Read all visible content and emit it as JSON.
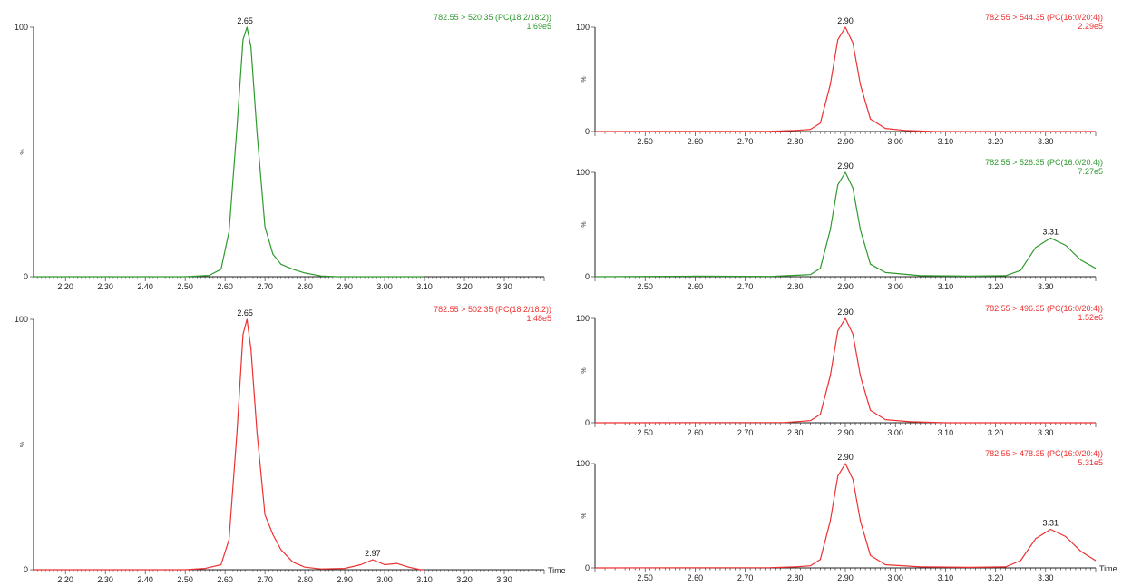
{
  "colors": {
    "green": "#2e9a2e",
    "red": "#ee3030",
    "axis": "#222222"
  },
  "chart_data": [
    {
      "type": "line",
      "title": "782.55 > 520.35 (PC(18:2/18:2))",
      "intensity": "1.69e5",
      "color": "green",
      "xlabel": "",
      "ylabel": "%",
      "xlim": [
        2.12,
        3.4
      ],
      "ylim": [
        0,
        100
      ],
      "xticks": [
        "2.20",
        "2.30",
        "2.40",
        "2.50",
        "2.60",
        "2.70",
        "2.80",
        "2.90",
        "3.00",
        "3.10",
        "3.20",
        "3.30"
      ],
      "yticks": [
        "0",
        "100"
      ],
      "peaks": [
        {
          "x": 2.65,
          "y": 100,
          "label": "2.65"
        }
      ],
      "x": [
        2.12,
        2.5,
        2.56,
        2.59,
        2.61,
        2.63,
        2.645,
        2.655,
        2.665,
        2.68,
        2.7,
        2.72,
        2.74,
        2.77,
        2.8,
        2.84,
        2.88,
        3.1
      ],
      "y": [
        0,
        0,
        0.5,
        3,
        18,
        60,
        95,
        100,
        92,
        58,
        20,
        9,
        5,
        3,
        1.5,
        0.3,
        0,
        0
      ]
    },
    {
      "type": "line",
      "title": "782.55 > 502.35 (PC(18:2/18:2))",
      "intensity": "1.48e5",
      "color": "red",
      "xlabel": "Time",
      "ylabel": "%",
      "xlim": [
        2.12,
        3.4
      ],
      "ylim": [
        0,
        100
      ],
      "xticks": [
        "2.20",
        "2.30",
        "2.40",
        "2.50",
        "2.60",
        "2.70",
        "2.80",
        "2.90",
        "3.00",
        "3.10",
        "3.20",
        "3.30"
      ],
      "yticks": [
        "0",
        "100"
      ],
      "peaks": [
        {
          "x": 2.65,
          "y": 100,
          "label": "2.65"
        },
        {
          "x": 2.97,
          "y": 4,
          "label": "2.97"
        }
      ],
      "x": [
        2.12,
        2.5,
        2.55,
        2.59,
        2.61,
        2.63,
        2.645,
        2.655,
        2.665,
        2.68,
        2.7,
        2.72,
        2.74,
        2.77,
        2.8,
        2.84,
        2.9,
        2.94,
        2.97,
        3.0,
        3.03,
        3.06,
        3.09,
        3.1
      ],
      "y": [
        0,
        0,
        0.5,
        2,
        12,
        55,
        94,
        100,
        88,
        55,
        22,
        14,
        8,
        3,
        1,
        0.3,
        0.5,
        2,
        4,
        2,
        2.5,
        1,
        0,
        0
      ]
    },
    {
      "type": "line",
      "title": "782.55 > 544.35 (PC(16:0/20:4))",
      "intensity": "2.29e5",
      "color": "red",
      "xlabel": "",
      "ylabel": "%",
      "xlim": [
        2.4,
        3.4
      ],
      "ylim": [
        0,
        100
      ],
      "xticks": [
        "2.50",
        "2.60",
        "2.70",
        "2.80",
        "2.90",
        "3.00",
        "3.10",
        "3.20",
        "3.30"
      ],
      "yticks": [
        "0",
        "100"
      ],
      "peaks": [
        {
          "x": 2.9,
          "y": 100,
          "label": "2.90"
        }
      ],
      "x": [
        2.4,
        2.75,
        2.8,
        2.83,
        2.85,
        2.87,
        2.885,
        2.9,
        2.915,
        2.93,
        2.95,
        2.98,
        3.02,
        3.08,
        3.4
      ],
      "y": [
        0,
        0.3,
        1,
        2,
        8,
        45,
        88,
        100,
        85,
        45,
        12,
        3,
        1,
        0,
        0
      ]
    },
    {
      "type": "line",
      "title": "782.55 > 526.35 (PC(16:0/20:4))",
      "intensity": "7.27e5",
      "color": "green",
      "xlabel": "",
      "ylabel": "%",
      "xlim": [
        2.4,
        3.4
      ],
      "ylim": [
        0,
        100
      ],
      "xticks": [
        "2.50",
        "2.60",
        "2.70",
        "2.80",
        "2.90",
        "3.00",
        "3.10",
        "3.20",
        "3.30"
      ],
      "yticks": [
        "0",
        "100"
      ],
      "peaks": [
        {
          "x": 2.9,
          "y": 100,
          "label": "2.90"
        },
        {
          "x": 3.31,
          "y": 37,
          "label": "3.31"
        }
      ],
      "x": [
        2.4,
        2.6,
        2.75,
        2.83,
        2.85,
        2.87,
        2.885,
        2.9,
        2.915,
        2.93,
        2.95,
        2.98,
        3.05,
        3.15,
        3.22,
        3.25,
        3.28,
        3.31,
        3.34,
        3.37,
        3.4
      ],
      "y": [
        0,
        0.5,
        0.3,
        2,
        8,
        45,
        88,
        100,
        85,
        45,
        12,
        4,
        1,
        0.5,
        1,
        6,
        28,
        37,
        30,
        16,
        8
      ]
    },
    {
      "type": "line",
      "title": "782.55 > 496.35 (PC(16:0/20:4))",
      "intensity": "1.52e6",
      "color": "red",
      "xlabel": "",
      "ylabel": "%",
      "xlim": [
        2.4,
        3.4
      ],
      "ylim": [
        0,
        100
      ],
      "xticks": [
        "2.50",
        "2.60",
        "2.70",
        "2.80",
        "2.90",
        "3.00",
        "3.10",
        "3.20",
        "3.30"
      ],
      "yticks": [
        "0",
        "100"
      ],
      "peaks": [
        {
          "x": 2.9,
          "y": 100,
          "label": "2.90"
        }
      ],
      "x": [
        2.4,
        2.78,
        2.83,
        2.85,
        2.87,
        2.885,
        2.9,
        2.915,
        2.93,
        2.95,
        2.98,
        3.03,
        3.1,
        3.4
      ],
      "y": [
        0,
        0.3,
        2,
        8,
        45,
        88,
        100,
        85,
        45,
        12,
        3,
        1,
        0,
        0
      ]
    },
    {
      "type": "line",
      "title": "782.55 > 478.35 (PC(16:0/20:4))",
      "intensity": "5.31e5",
      "color": "red",
      "xlabel": "Time",
      "ylabel": "%",
      "xlim": [
        2.4,
        3.4
      ],
      "ylim": [
        0,
        100
      ],
      "xticks": [
        "2.50",
        "2.60",
        "2.70",
        "2.80",
        "2.90",
        "3.00",
        "3.10",
        "3.20",
        "3.30"
      ],
      "yticks": [
        "0",
        "100"
      ],
      "peaks": [
        {
          "x": 2.9,
          "y": 100,
          "label": "2.90"
        },
        {
          "x": 3.31,
          "y": 37,
          "label": "3.31"
        }
      ],
      "x": [
        2.4,
        2.75,
        2.8,
        2.83,
        2.85,
        2.87,
        2.885,
        2.9,
        2.915,
        2.93,
        2.95,
        2.98,
        3.05,
        3.15,
        3.22,
        3.25,
        3.28,
        3.31,
        3.34,
        3.37,
        3.4
      ],
      "y": [
        0,
        0.3,
        1,
        2,
        8,
        45,
        88,
        100,
        85,
        45,
        12,
        3,
        1,
        0.5,
        1,
        7,
        28,
        37,
        30,
        16,
        7
      ]
    }
  ]
}
